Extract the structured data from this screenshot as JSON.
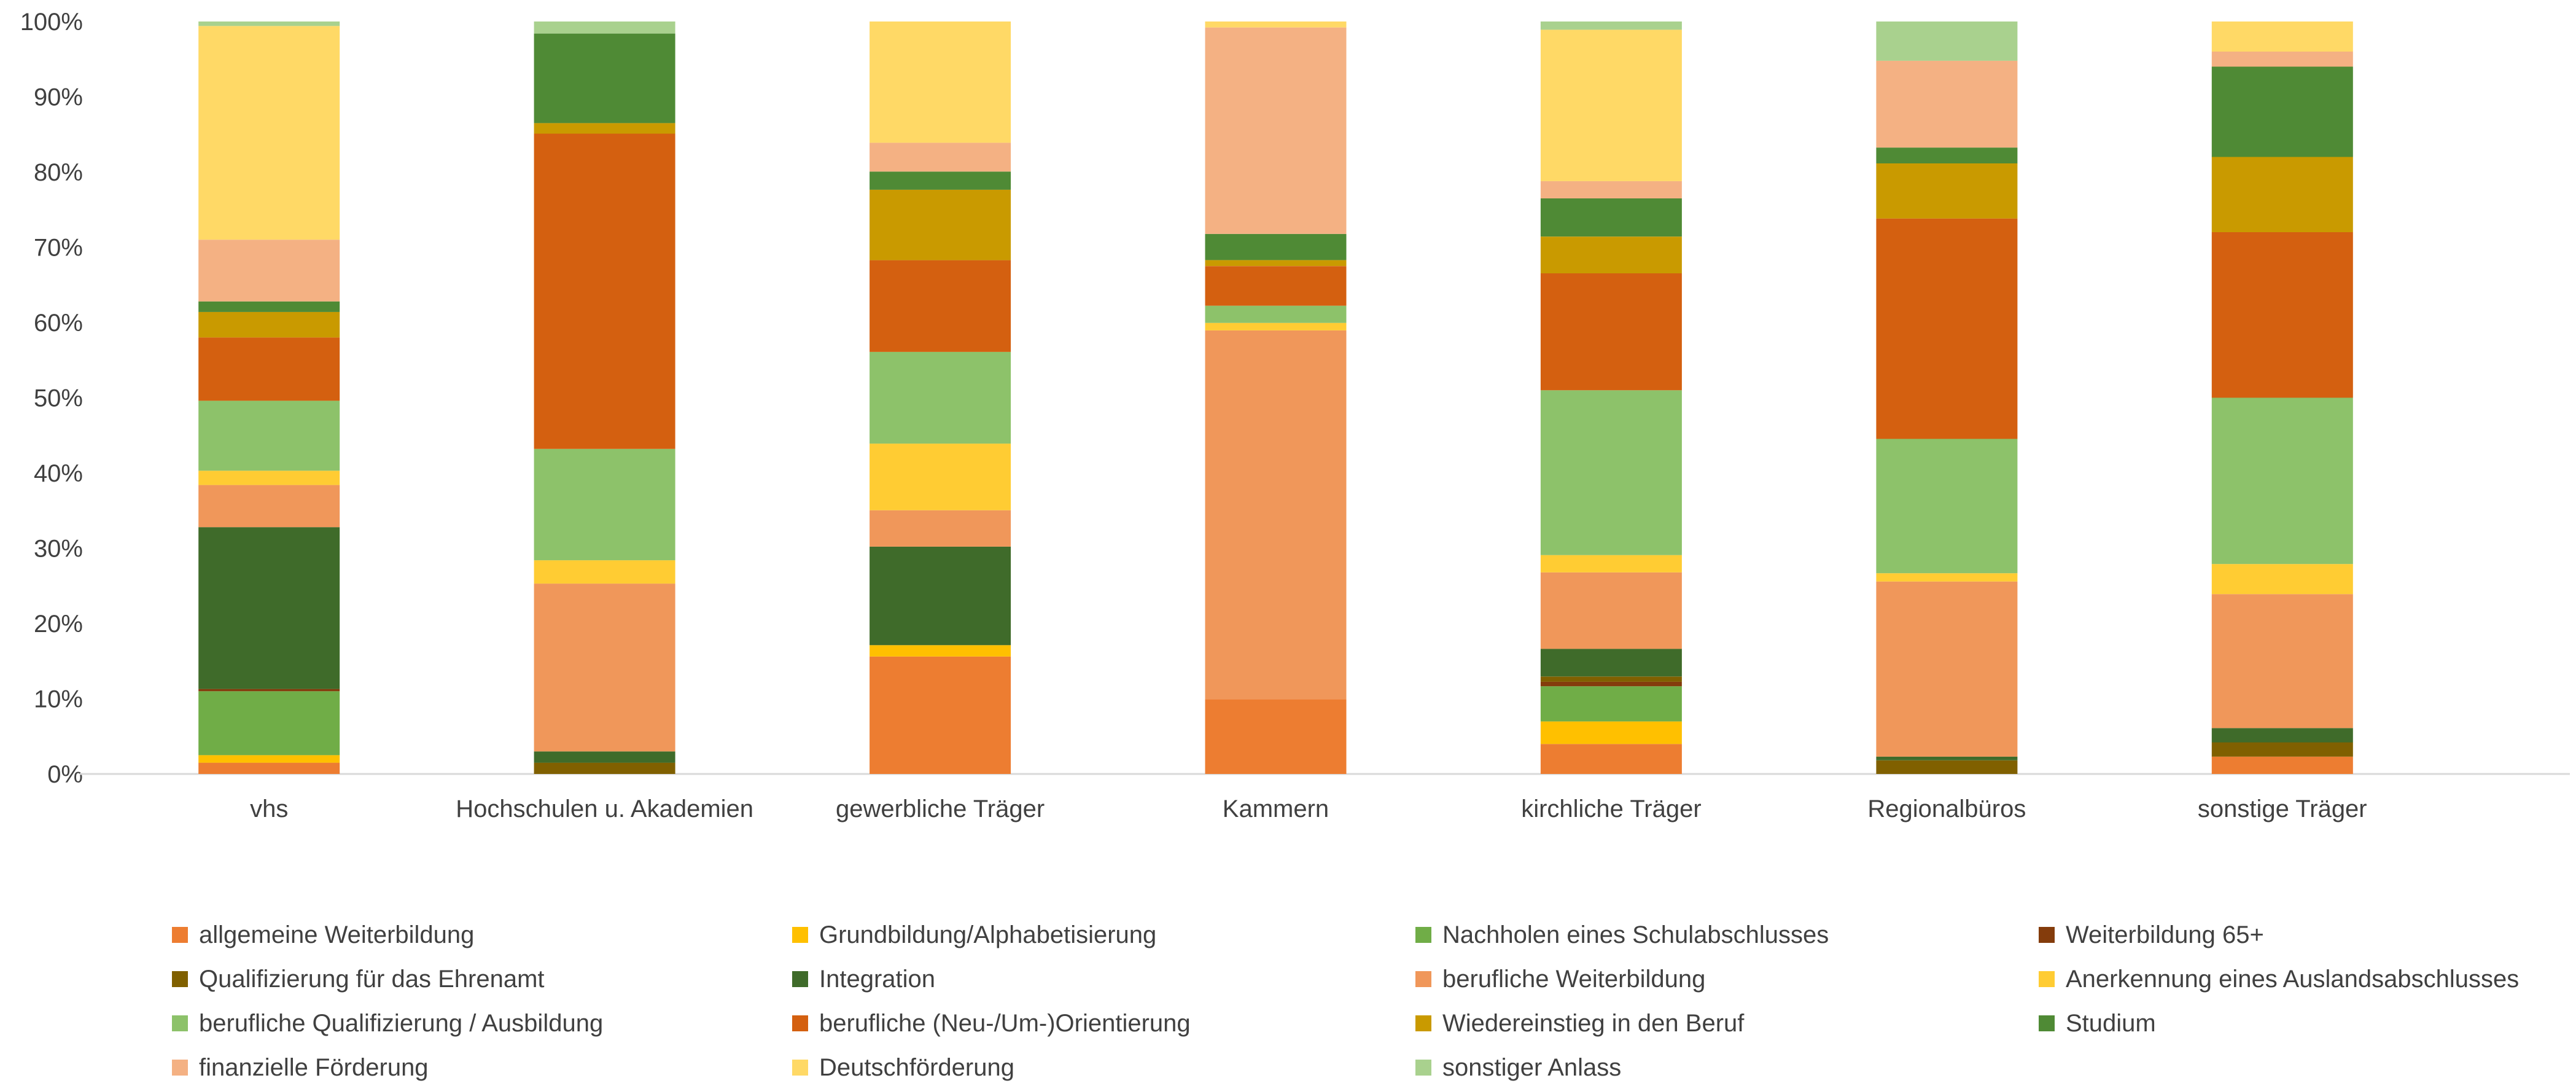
{
  "chart_data": {
    "type": "bar",
    "stacked": true,
    "percent_stacked": true,
    "categories": [
      "vhs",
      "Hochschulen u. Akademien",
      "gewerbliche Träger",
      "Kammern",
      "kirchliche Träger",
      "Regionalbüros",
      "sonstige Träger"
    ],
    "y_ticks": [
      "0%",
      "10%",
      "20%",
      "30%",
      "40%",
      "50%",
      "60%",
      "70%",
      "80%",
      "90%",
      "100%"
    ],
    "ylim": [
      0,
      100
    ],
    "grid": false,
    "legend_position": "bottom",
    "series": [
      {
        "name": "allgemeine Weiterbildung",
        "color": "#ED7D31",
        "values": [
          1.5,
          0,
          15.5,
          10,
          4,
          0,
          2.3
        ]
      },
      {
        "name": "Grundbildung/Alphabetisierung",
        "color": "#FFC000",
        "values": [
          1.0,
          0,
          1.5,
          0,
          3,
          0,
          0
        ]
      },
      {
        "name": "Nachholen eines Schulabschlusses",
        "color": "#70AD47",
        "values": [
          8.5,
          0,
          0,
          0,
          4.7,
          0,
          0
        ]
      },
      {
        "name": "Weiterbildung 65+",
        "color": "#843C0C",
        "values": [
          0.3,
          0,
          0,
          0,
          0.6,
          0,
          0
        ]
      },
      {
        "name": "Qualifizierung für das Ehrenamt",
        "color": "#806000",
        "values": [
          0,
          1.5,
          0,
          0,
          0.7,
          1.8,
          1.9
        ]
      },
      {
        "name": "Integration",
        "color": "#3F6B2A",
        "values": [
          21.5,
          1.5,
          13.0,
          0,
          3.7,
          0.5,
          1.9
        ]
      },
      {
        "name": "berufliche Weiterbildung",
        "color": "#F0975A",
        "values": [
          5.6,
          22.3,
          4.8,
          49.3,
          10.2,
          23.2,
          17.8
        ]
      },
      {
        "name": "Anerkennung eines Auslandsabschlusses",
        "color": "#FFCC33",
        "values": [
          1.9,
          3.1,
          8.8,
          1.0,
          2.3,
          1.1,
          4.0
        ]
      },
      {
        "name": "berufliche Qualifizierung / Ausbildung",
        "color": "#8DC26A",
        "values": [
          9.3,
          14.8,
          12.1,
          2.3,
          22.0,
          17.8,
          22.1
        ]
      },
      {
        "name": "berufliche (Neu-/Um-)Orientierung",
        "color": "#D46010",
        "values": [
          8.4,
          41.9,
          12.1,
          5.3,
          15.6,
          29.2,
          22.0
        ]
      },
      {
        "name": "Wiedereinstieg in den Beruf",
        "color": "#C99A00",
        "values": [
          3.4,
          1.4,
          9.3,
          0.8,
          4.9,
          7.3,
          10.0
        ]
      },
      {
        "name": "Studium",
        "color": "#4F8A35",
        "values": [
          1.4,
          11.9,
          2.4,
          3.5,
          5.1,
          2.1,
          12.0
        ]
      },
      {
        "name": "finanzielle Förderung",
        "color": "#F4B183",
        "values": [
          8.2,
          0,
          3.8,
          27.6,
          2.3,
          11.5,
          2.0
        ]
      },
      {
        "name": "Deutschförderung",
        "color": "#FFD966",
        "values": [
          28.4,
          0,
          16.0,
          0.8,
          20.2,
          0,
          4.0
        ]
      },
      {
        "name": "sonstiger Anlass",
        "color": "#A9D18E",
        "values": [
          0.6,
          1.6,
          0,
          0,
          1.1,
          5.2,
          0
        ]
      }
    ]
  }
}
